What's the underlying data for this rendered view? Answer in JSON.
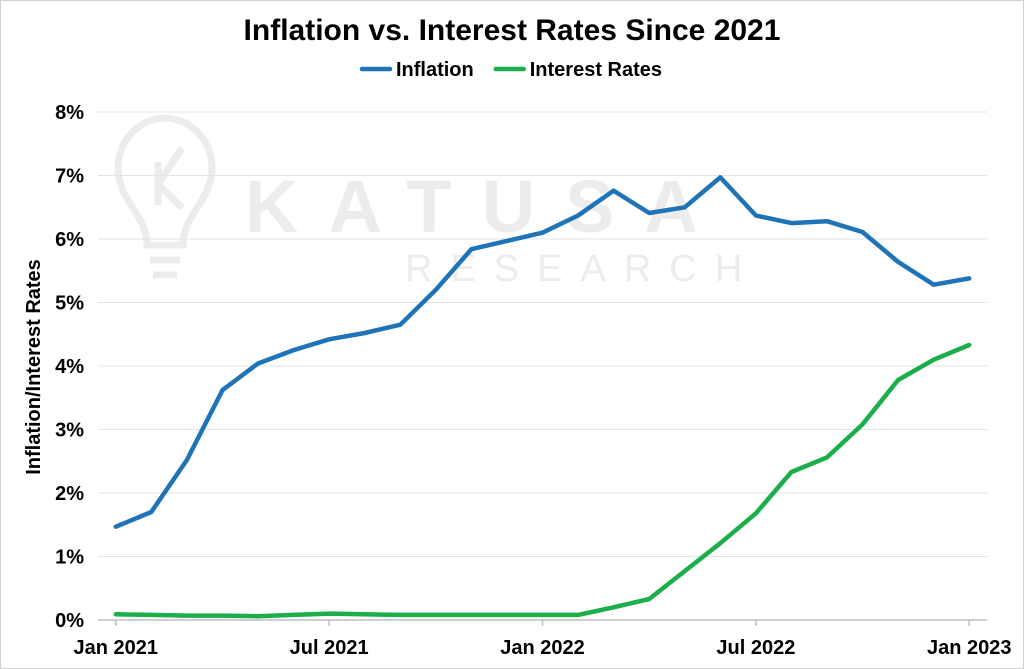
{
  "watermark": {
    "brand": "KATUSA",
    "sub": "RESEARCH"
  },
  "chart_data": {
    "type": "line",
    "title": "Inflation vs. Interest Rates Since 2021",
    "xlabel": "",
    "ylabel": "Inflation/Interest  Rates",
    "x": [
      "Jan 2021",
      "Feb 2021",
      "Mar 2021",
      "Apr 2021",
      "May 2021",
      "Jun 2021",
      "Jul 2021",
      "Aug 2021",
      "Sep 2021",
      "Oct 2021",
      "Nov 2021",
      "Dec 2021",
      "Jan 2022",
      "Feb 2022",
      "Mar 2022",
      "Apr 2022",
      "May 2022",
      "Jun 2022",
      "Jul 2022",
      "Aug 2022",
      "Sep 2022",
      "Oct 2022",
      "Nov 2022",
      "Dec 2022",
      "Jan 2023"
    ],
    "x_tick_labels": [
      "Jan 2021",
      "Jul 2021",
      "Jan 2022",
      "Jul 2022",
      "Jan 2023"
    ],
    "y_tick_labels": [
      "0%",
      "1%",
      "2%",
      "3%",
      "4%",
      "5%",
      "6%",
      "7%",
      "8%"
    ],
    "ylim": [
      0,
      8
    ],
    "grid": true,
    "legend_position": "top",
    "series": [
      {
        "name": "Inflation",
        "color": "#1f73b7",
        "values": [
          1.47,
          1.7,
          2.52,
          3.62,
          4.04,
          4.25,
          4.42,
          4.52,
          4.65,
          5.2,
          5.84,
          5.97,
          6.1,
          6.37,
          6.76,
          6.41,
          6.5,
          6.97,
          6.37,
          6.25,
          6.28,
          6.11,
          5.64,
          5.28,
          5.38
        ]
      },
      {
        "name": "Interest Rates",
        "color": "#1cae4a",
        "values": [
          0.09,
          0.08,
          0.07,
          0.07,
          0.06,
          0.08,
          0.1,
          0.09,
          0.08,
          0.08,
          0.08,
          0.08,
          0.08,
          0.08,
          0.2,
          0.33,
          0.77,
          1.21,
          1.68,
          2.33,
          2.56,
          3.08,
          3.78,
          4.1,
          4.33
        ]
      }
    ]
  }
}
